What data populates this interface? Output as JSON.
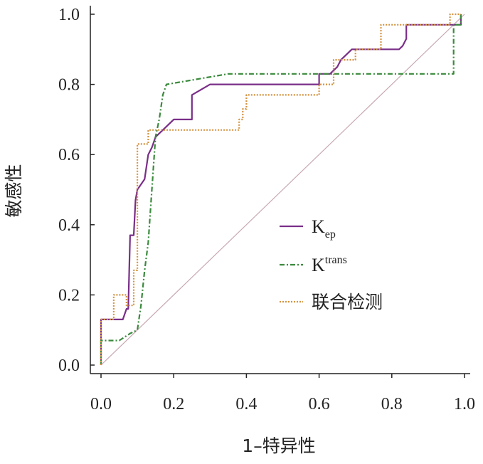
{
  "chart_data": {
    "type": "line",
    "xlabel": "1–特异性",
    "ylabel": "敏感性",
    "xlim": [
      0,
      1.0
    ],
    "ylim": [
      0,
      1.0
    ],
    "x_ticks": [
      "0.0",
      "0.2",
      "0.4",
      "0.6",
      "0.8",
      "1.0"
    ],
    "y_ticks": [
      "0.0",
      "0.2",
      "0.4",
      "0.6",
      "0.8",
      "1.0"
    ],
    "grid": false,
    "legend_position": "center-right",
    "reference_line": {
      "x": [
        0,
        1
      ],
      "y": [
        0,
        1
      ],
      "color": "#c8a8b0"
    },
    "series": [
      {
        "legend_base": "K",
        "legend_sub": "ep",
        "color": "#7a2e88",
        "dash": "",
        "x": [
          0.0,
          0.0,
          0.06,
          0.07,
          0.075,
          0.08,
          0.09,
          0.095,
          0.1,
          0.12,
          0.13,
          0.14,
          0.15,
          0.2,
          0.25,
          0.25,
          0.3,
          0.32,
          0.6,
          0.6,
          0.63,
          0.65,
          0.66,
          0.69,
          0.82,
          0.83,
          0.84,
          0.84,
          0.99,
          0.99
        ],
        "y": [
          0.0,
          0.13,
          0.13,
          0.16,
          0.16,
          0.37,
          0.37,
          0.47,
          0.5,
          0.53,
          0.6,
          0.62,
          0.65,
          0.7,
          0.7,
          0.77,
          0.8,
          0.8,
          0.8,
          0.83,
          0.83,
          0.85,
          0.87,
          0.9,
          0.9,
          0.91,
          0.93,
          0.97,
          0.97,
          1.0
        ]
      },
      {
        "legend_base": "K",
        "legend_sub": "trans",
        "color": "#3a8a3c",
        "dash": "7 3 2 3",
        "x": [
          0.0,
          0.0,
          0.05,
          0.08,
          0.1,
          0.11,
          0.12,
          0.13,
          0.14,
          0.15,
          0.16,
          0.17,
          0.18,
          0.35,
          0.97,
          0.97,
          0.99,
          0.99
        ],
        "y": [
          0.0,
          0.07,
          0.07,
          0.09,
          0.1,
          0.17,
          0.27,
          0.35,
          0.5,
          0.65,
          0.7,
          0.77,
          0.8,
          0.83,
          0.83,
          0.97,
          0.97,
          1.0
        ]
      },
      {
        "legend_base": "联合检测",
        "legend_sub": "",
        "color": "#d49240",
        "dash": "2 2",
        "x": [
          0.0,
          0.0,
          0.035,
          0.035,
          0.07,
          0.07,
          0.09,
          0.09,
          0.1,
          0.1,
          0.13,
          0.13,
          0.38,
          0.38,
          0.39,
          0.39,
          0.4,
          0.4,
          0.6,
          0.6,
          0.64,
          0.64,
          0.7,
          0.7,
          0.77,
          0.77,
          0.96,
          0.96,
          0.99
        ],
        "y": [
          0.0,
          0.13,
          0.13,
          0.2,
          0.2,
          0.17,
          0.17,
          0.27,
          0.27,
          0.63,
          0.63,
          0.67,
          0.67,
          0.7,
          0.7,
          0.73,
          0.73,
          0.77,
          0.77,
          0.8,
          0.8,
          0.87,
          0.87,
          0.9,
          0.9,
          0.97,
          0.97,
          1.0,
          1.0
        ]
      }
    ]
  }
}
